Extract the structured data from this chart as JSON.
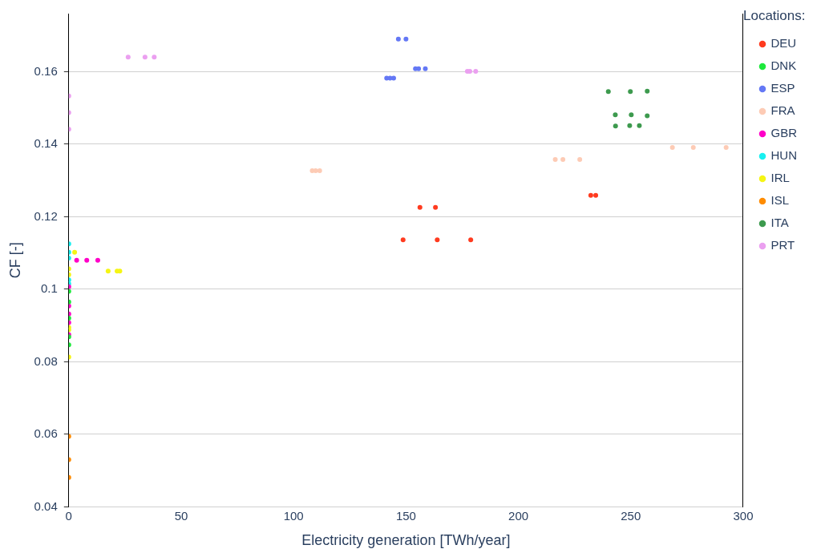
{
  "chart_data": {
    "type": "scatter",
    "xlabel": "Electricity generation [TWh/year]",
    "ylabel": "CF [-]",
    "legend_title": "Locations:",
    "legend": "top right",
    "grid": "y",
    "marker": "circle",
    "xlim": [
      0,
      300
    ],
    "xticks": [
      0,
      50,
      100,
      150,
      200,
      250,
      300
    ],
    "ylim": [
      0.04,
      0.176
    ],
    "yticks": [
      0.04,
      0.06,
      0.08,
      0.1,
      0.12,
      0.14,
      0.16
    ],
    "series": [
      {
        "name": "DEU",
        "color": "#ff3b1f",
        "x": [
          148.7,
          163.9,
          178.8,
          156.2,
          163.1,
          232.2,
          234.4
        ],
        "values": [
          0.1136,
          0.1136,
          0.1136,
          0.1226,
          0.1226,
          0.1259,
          0.1259
        ]
      },
      {
        "name": "DNK",
        "color": "#1de93c",
        "x": [
          0,
          0,
          0,
          0,
          0
        ],
        "values": [
          0.0994,
          0.0965,
          0.092,
          0.0869,
          0.0847
        ]
      },
      {
        "name": "ESP",
        "color": "#6478f5",
        "x": [
          146.6,
          150,
          154.2,
          155.6,
          158.6,
          141.4,
          142.9,
          144.5
        ],
        "values": [
          0.169,
          0.169,
          0.1608,
          0.1608,
          0.1608,
          0.1582,
          0.1582,
          0.1582
        ]
      },
      {
        "name": "FRA",
        "color": "#fdcbb5",
        "x": [
          108.3,
          109.8,
          111.6,
          216.4,
          219.8,
          227.3,
          268.5,
          277.8,
          292.4
        ],
        "values": [
          0.1327,
          0.1327,
          0.1327,
          0.1358,
          0.1358,
          0.1358,
          0.1391,
          0.1391,
          0.1391
        ]
      },
      {
        "name": "GBR",
        "color": "#ff00c8",
        "x": [
          0,
          0,
          0,
          0,
          0,
          3.5,
          8,
          12.9
        ],
        "values": [
          0.1007,
          0.0954,
          0.0932,
          0.0908,
          0.0875,
          0.108,
          0.108,
          0.108
        ]
      },
      {
        "name": "HUN",
        "color": "#19f0f0",
        "x": [
          0,
          0,
          0,
          0,
          0
        ],
        "values": [
          0.1125,
          0.1102,
          0.1086,
          0.1026,
          0.1015
        ]
      },
      {
        "name": "IRL",
        "color": "#f5f514",
        "x": [
          2.6,
          0,
          0,
          0,
          0,
          0,
          17.5,
          21.5,
          22.7
        ],
        "values": [
          0.1102,
          0.1056,
          0.104,
          0.0895,
          0.0888,
          0.0813,
          0.105,
          0.105,
          0.105
        ]
      },
      {
        "name": "ISL",
        "color": "#ff8c00",
        "x": [
          0,
          0,
          0
        ],
        "values": [
          0.0594,
          0.053,
          0.0481
        ]
      },
      {
        "name": "ITA",
        "color": "#3d9a4e",
        "x": [
          240,
          249.8,
          257.3,
          243.1,
          250.2,
          257.3,
          243.2,
          249.5,
          253.8
        ],
        "values": [
          0.1545,
          0.1545,
          0.1546,
          0.1481,
          0.1481,
          0.1478,
          0.145,
          0.1451,
          0.1451
        ]
      },
      {
        "name": "PRT",
        "color": "#eba0f0",
        "x": [
          177.3,
          178.4,
          181,
          26.4,
          33.9,
          38,
          0,
          0,
          0
        ],
        "values": [
          0.1601,
          0.1601,
          0.1601,
          0.164,
          0.164,
          0.164,
          0.1533,
          0.1487,
          0.1441
        ]
      }
    ]
  }
}
